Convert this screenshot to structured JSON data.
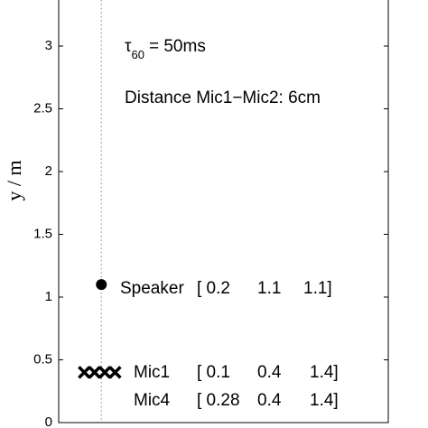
{
  "chart_data": {
    "type": "scatter",
    "y_label": "y / m",
    "ylim": [
      0,
      3.4
    ],
    "yticks": [
      0,
      0.5,
      1,
      1.5,
      2,
      2.5,
      3
    ],
    "xlim": [
      -0.05,
      1.88
    ],
    "series": [
      {
        "x": [
          0.2
        ],
        "values": [
          1.1
        ],
        "marker": "o",
        "color": "#000000"
      },
      {
        "x": [
          0.1,
          0.16,
          0.22,
          0.28
        ],
        "values": [
          0.4,
          0.4,
          0.4,
          0.4
        ],
        "marker": "x",
        "color": "#000000"
      }
    ],
    "guide_line_x": 0.2,
    "annotations": {
      "tau_symbol": "τ",
      "tau_subscript": "60",
      "tau_text": "= 50ms",
      "distance": "Distance Mic1−Mic2:  6cm",
      "speaker": [
        "Speaker",
        "[ 0.2",
        "1.1",
        "1.1]"
      ],
      "mic1": [
        "Mic1",
        "[ 0.1",
        "0.4",
        "1.4]"
      ],
      "mic4": [
        "Mic4",
        "[ 0.28",
        "0.4",
        "1.4]"
      ]
    }
  }
}
